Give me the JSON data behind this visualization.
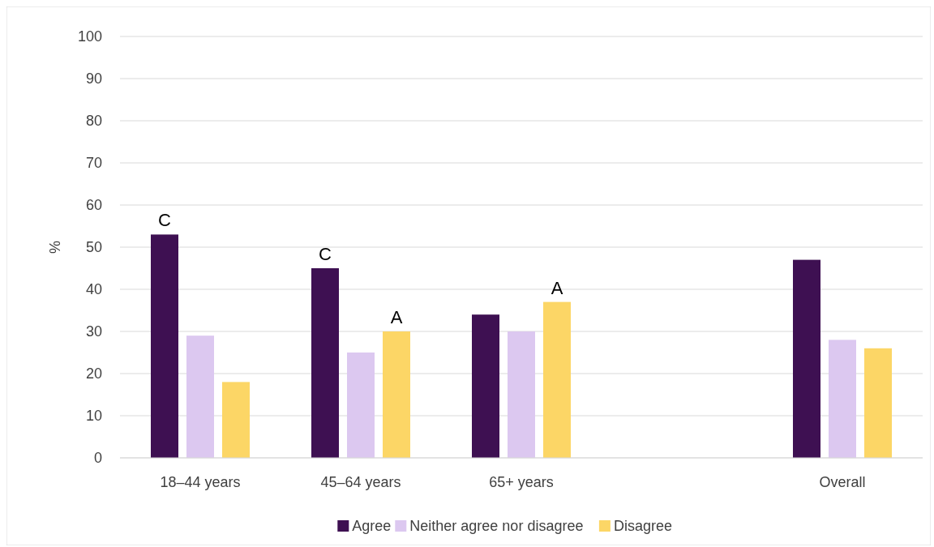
{
  "chart_data": {
    "type": "bar",
    "ylabel": "%",
    "categories": [
      "18–44 years",
      "45–64 years",
      "65+ years",
      null,
      "Overall"
    ],
    "series": [
      {
        "name": "Agree",
        "color": "#3e1052",
        "values": [
          53,
          45,
          34,
          null,
          47
        ],
        "value_labels": [
          "C",
          "C",
          null,
          null,
          null
        ]
      },
      {
        "name": "Neither agree nor disagree",
        "color": "#dcc8f0",
        "values": [
          29,
          25,
          30,
          null,
          28
        ]
      },
      {
        "name": "Disagree",
        "color": "#fcd666",
        "values": [
          18,
          30,
          37,
          null,
          26
        ],
        "value_labels": [
          null,
          "A",
          "A",
          null,
          null
        ]
      }
    ],
    "ylim": [
      0,
      100
    ],
    "yticks": [
      0,
      10,
      20,
      30,
      40,
      50,
      60,
      70,
      80,
      90,
      100
    ],
    "grid": "y",
    "legend": "bottom"
  }
}
